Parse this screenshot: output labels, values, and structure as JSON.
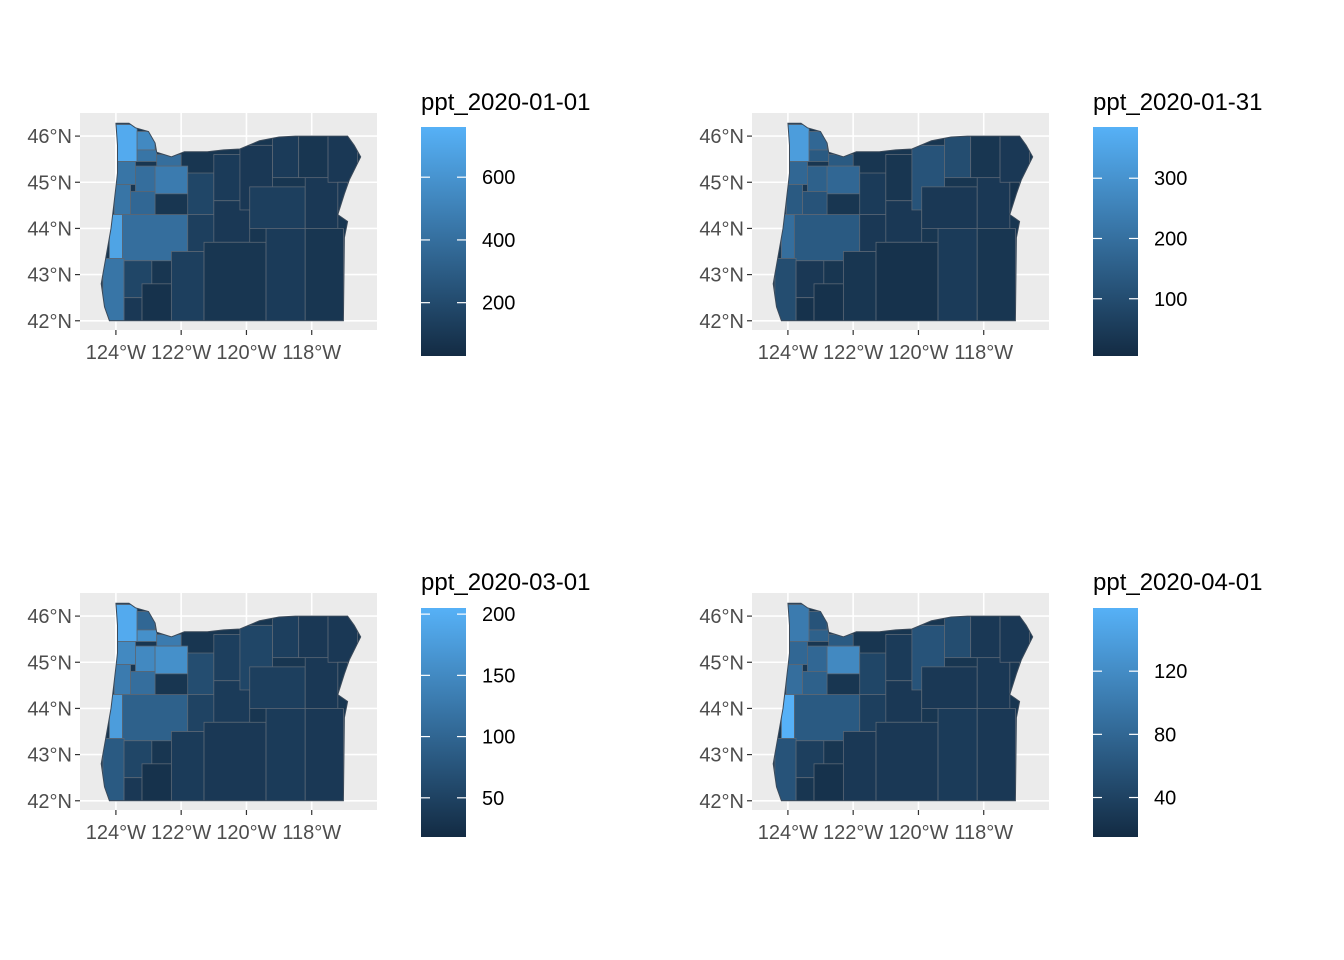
{
  "figure": {
    "map_region": "Oregon",
    "fill_variable": "ppt",
    "colors": {
      "panel_background": "#ebebeb",
      "grid": "#ffffff",
      "county_border": "#5a6775",
      "gradient_low": "#132b43",
      "gradient_high": "#56b1f7"
    },
    "x_axis": {
      "ticks": [
        "124°W",
        "122°W",
        "120°W",
        "118°W"
      ],
      "tick_values": [
        -124,
        -122,
        -120,
        -118
      ],
      "lim": [
        -125.1,
        -116.0
      ]
    },
    "y_axis": {
      "ticks": [
        "42°N",
        "43°N",
        "44°N",
        "45°N",
        "46°N"
      ],
      "tick_values": [
        42,
        43,
        44,
        45,
        46
      ],
      "lim": [
        41.8,
        46.5
      ]
    },
    "panels": [
      {
        "legend_title": "ppt_2020-01-01",
        "legend_labels": [
          "200",
          "400",
          "600"
        ],
        "legend_values": [
          200,
          400,
          600
        ],
        "range": [
          30,
          760
        ],
        "county_fill_levels": [
          0.95,
          0.7,
          0.55,
          0.5,
          0.55,
          0.5,
          0.6,
          0.55,
          0.45,
          0.9,
          0.5,
          0.55,
          0.2,
          0.1,
          0.05,
          0.15,
          0.15,
          0.2,
          0.12,
          0.1,
          0.08,
          0.1,
          0.12,
          0.15,
          0.12,
          0.1,
          0.08,
          0.1,
          0.08,
          0.1
        ]
      },
      {
        "legend_title": "ppt_2020-01-31",
        "legend_labels": [
          "100",
          "200",
          "300"
        ],
        "legend_values": [
          100,
          200,
          300
        ],
        "range": [
          5,
          385
        ],
        "county_fill_levels": [
          0.85,
          0.45,
          0.35,
          0.35,
          0.45,
          0.4,
          0.45,
          0.35,
          0.3,
          0.5,
          0.35,
          0.25,
          0.1,
          0.05,
          0.05,
          0.08,
          0.1,
          0.12,
          0.08,
          0.1,
          0.05,
          0.3,
          0.25,
          0.1,
          0.12,
          0.1,
          0.08,
          0.1,
          0.08,
          0.05
        ]
      },
      {
        "legend_title": "ppt_2020-03-01",
        "legend_labels": [
          "50",
          "100",
          "150",
          "200"
        ],
        "legend_values": [
          50,
          100,
          150,
          200
        ],
        "range": [
          18,
          205
        ],
        "county_fill_levels": [
          0.95,
          0.45,
          0.75,
          0.6,
          0.7,
          0.7,
          0.75,
          0.6,
          0.5,
          0.85,
          0.4,
          0.35,
          0.2,
          0.1,
          0.05,
          0.12,
          0.18,
          0.25,
          0.15,
          0.12,
          0.1,
          0.2,
          0.15,
          0.15,
          0.12,
          0.1,
          0.1,
          0.1,
          0.1,
          0.08
        ]
      },
      {
        "legend_title": "ppt_2020-04-01",
        "legend_labels": [
          "40",
          "80",
          "120"
        ],
        "legend_values": [
          40,
          80,
          120
        ],
        "range": [
          15,
          160
        ],
        "county_fill_levels": [
          0.6,
          0.3,
          0.4,
          0.35,
          0.45,
          0.45,
          0.7,
          0.5,
          0.4,
          1.0,
          0.35,
          0.3,
          0.15,
          0.08,
          0.05,
          0.1,
          0.15,
          0.2,
          0.12,
          0.1,
          0.1,
          0.3,
          0.25,
          0.1,
          0.12,
          0.1,
          0.1,
          0.1,
          0.1,
          0.08
        ]
      }
    ]
  }
}
